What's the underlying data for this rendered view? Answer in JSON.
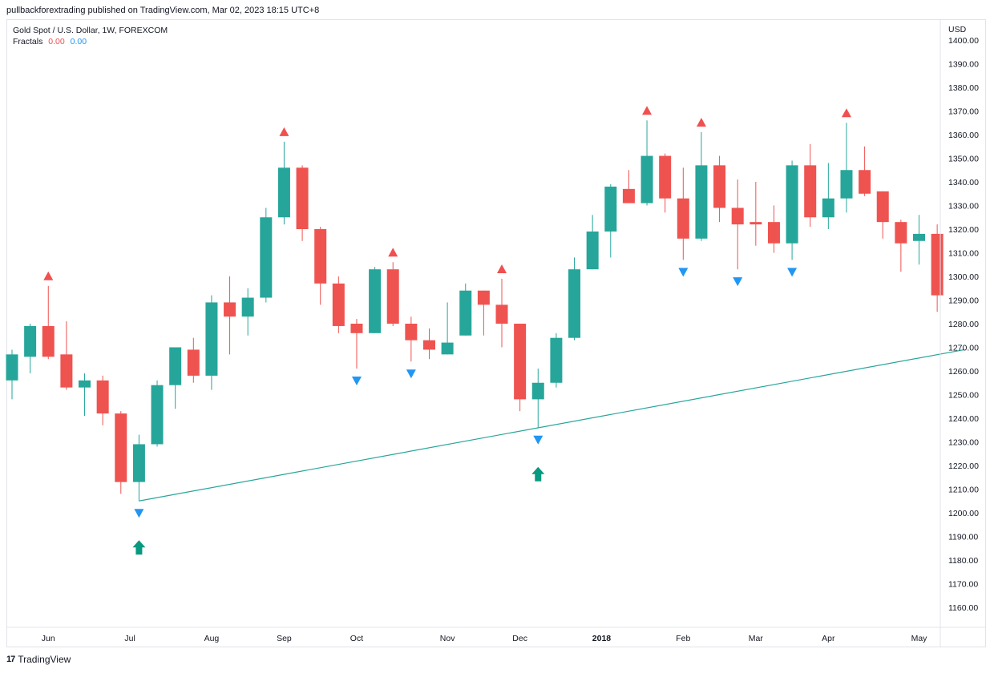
{
  "header": {
    "publish_line": "pullbackforextrading published on TradingView.com, Mar 02, 2023 18:15 UTC+8"
  },
  "legend": {
    "symbol": "Gold Spot / U.S. Dollar, 1W, FOREXCOM",
    "indicator": "Fractals",
    "value_up": "0.00",
    "value_down": "0.00"
  },
  "footer": {
    "brand": "TradingView",
    "logo": "17"
  },
  "colors": {
    "up": "#26a69a",
    "down": "#ef5350",
    "fractal_up": "#f0504f",
    "fractal_down": "#2196f3",
    "arrow": "#089981",
    "trendline": "#26a69a"
  },
  "chart_data": {
    "type": "candlestick",
    "currency_label": "USD",
    "ylim": [
      1150,
      1403
    ],
    "y_ticks": [
      1160,
      1170,
      1180,
      1190,
      1200,
      1210,
      1220,
      1230,
      1240,
      1250,
      1260,
      1270,
      1280,
      1290,
      1300,
      1310,
      1320,
      1330,
      1340,
      1350,
      1360,
      1370,
      1380,
      1390,
      1400
    ],
    "x_labels": [
      "Jun",
      "Jul",
      "Aug",
      "Sep",
      "Oct",
      "Nov",
      "Dec",
      "2018",
      "Feb",
      "Mar",
      "Apr",
      "May"
    ],
    "x_label_candle_index": [
      2,
      6.5,
      11,
      15,
      19,
      24,
      28,
      32.5,
      37,
      41,
      45,
      50
    ],
    "candles": [
      {
        "o": 1256,
        "h": 1269,
        "l": 1248,
        "c": 1267
      },
      {
        "o": 1266,
        "h": 1280,
        "l": 1259,
        "c": 1279
      },
      {
        "o": 1279,
        "h": 1296,
        "l": 1265,
        "c": 1266
      },
      {
        "o": 1267,
        "h": 1281,
        "l": 1252,
        "c": 1253
      },
      {
        "o": 1253,
        "h": 1259,
        "l": 1241,
        "c": 1256
      },
      {
        "o": 1256,
        "h": 1258,
        "l": 1237,
        "c": 1242
      },
      {
        "o": 1242,
        "h": 1243,
        "l": 1208,
        "c": 1213
      },
      {
        "o": 1213,
        "h": 1233,
        "l": 1205,
        "c": 1229
      },
      {
        "o": 1229,
        "h": 1256,
        "l": 1228,
        "c": 1254
      },
      {
        "o": 1254,
        "h": 1270,
        "l": 1244,
        "c": 1270
      },
      {
        "o": 1269,
        "h": 1274,
        "l": 1255,
        "c": 1258
      },
      {
        "o": 1258,
        "h": 1292,
        "l": 1252,
        "c": 1289
      },
      {
        "o": 1289,
        "h": 1300,
        "l": 1267,
        "c": 1283
      },
      {
        "o": 1283,
        "h": 1295,
        "l": 1275,
        "c": 1291
      },
      {
        "o": 1291,
        "h": 1329,
        "l": 1289,
        "c": 1325
      },
      {
        "o": 1325,
        "h": 1357,
        "l": 1322,
        "c": 1346
      },
      {
        "o": 1346,
        "h": 1347,
        "l": 1315,
        "c": 1320
      },
      {
        "o": 1320,
        "h": 1321,
        "l": 1288,
        "c": 1297
      },
      {
        "o": 1297,
        "h": 1300,
        "l": 1276,
        "c": 1279
      },
      {
        "o": 1280,
        "h": 1282,
        "l": 1261,
        "c": 1276
      },
      {
        "o": 1276,
        "h": 1304,
        "l": 1276,
        "c": 1303
      },
      {
        "o": 1303,
        "h": 1306,
        "l": 1279,
        "c": 1280
      },
      {
        "o": 1280,
        "h": 1283,
        "l": 1264,
        "c": 1273
      },
      {
        "o": 1273,
        "h": 1278,
        "l": 1265,
        "c": 1269
      },
      {
        "o": 1267,
        "h": 1289,
        "l": 1267,
        "c": 1272
      },
      {
        "o": 1275,
        "h": 1297,
        "l": 1275,
        "c": 1294
      },
      {
        "o": 1294,
        "h": 1294,
        "l": 1275,
        "c": 1288
      },
      {
        "o": 1288,
        "h": 1299,
        "l": 1270,
        "c": 1280
      },
      {
        "o": 1280,
        "h": 1280,
        "l": 1243,
        "c": 1248
      },
      {
        "o": 1248,
        "h": 1261,
        "l": 1236,
        "c": 1255
      },
      {
        "o": 1255,
        "h": 1276,
        "l": 1253,
        "c": 1274
      },
      {
        "o": 1274,
        "h": 1308,
        "l": 1273,
        "c": 1303
      },
      {
        "o": 1303,
        "h": 1326,
        "l": 1303,
        "c": 1319
      },
      {
        "o": 1319,
        "h": 1339,
        "l": 1308,
        "c": 1338
      },
      {
        "o": 1337,
        "h": 1345,
        "l": 1331,
        "c": 1331
      },
      {
        "o": 1331,
        "h": 1366,
        "l": 1330,
        "c": 1351
      },
      {
        "o": 1351,
        "h": 1352,
        "l": 1327,
        "c": 1333
      },
      {
        "o": 1333,
        "h": 1346,
        "l": 1307,
        "c": 1316
      },
      {
        "o": 1316,
        "h": 1361,
        "l": 1315,
        "c": 1347
      },
      {
        "o": 1347,
        "h": 1351,
        "l": 1323,
        "c": 1329
      },
      {
        "o": 1329,
        "h": 1341,
        "l": 1303,
        "c": 1322
      },
      {
        "o": 1323,
        "h": 1340,
        "l": 1313,
        "c": 1322
      },
      {
        "o": 1323,
        "h": 1330,
        "l": 1310,
        "c": 1314
      },
      {
        "o": 1314,
        "h": 1349,
        "l": 1307,
        "c": 1347
      },
      {
        "o": 1347,
        "h": 1356,
        "l": 1321,
        "c": 1325
      },
      {
        "o": 1325,
        "h": 1348,
        "l": 1320,
        "c": 1333
      },
      {
        "o": 1333,
        "h": 1365,
        "l": 1327,
        "c": 1345
      },
      {
        "o": 1345,
        "h": 1355,
        "l": 1334,
        "c": 1335
      },
      {
        "o": 1336,
        "h": 1336,
        "l": 1316,
        "c": 1323
      },
      {
        "o": 1323,
        "h": 1324,
        "l": 1302,
        "c": 1314
      },
      {
        "o": 1315,
        "h": 1326,
        "l": 1305,
        "c": 1318
      },
      {
        "o": 1318,
        "h": 1322,
        "l": 1285,
        "c": 1292
      }
    ],
    "fractals_up": [
      2,
      15,
      21,
      27,
      35,
      38,
      46
    ],
    "fractals_down": [
      7,
      19,
      22,
      29,
      37,
      40,
      43
    ],
    "buy_arrows": [
      7,
      29
    ],
    "trendline": {
      "from": {
        "candle": 7,
        "price": 1205
      },
      "to": {
        "candle": 52.5,
        "price": 1269
      }
    }
  }
}
